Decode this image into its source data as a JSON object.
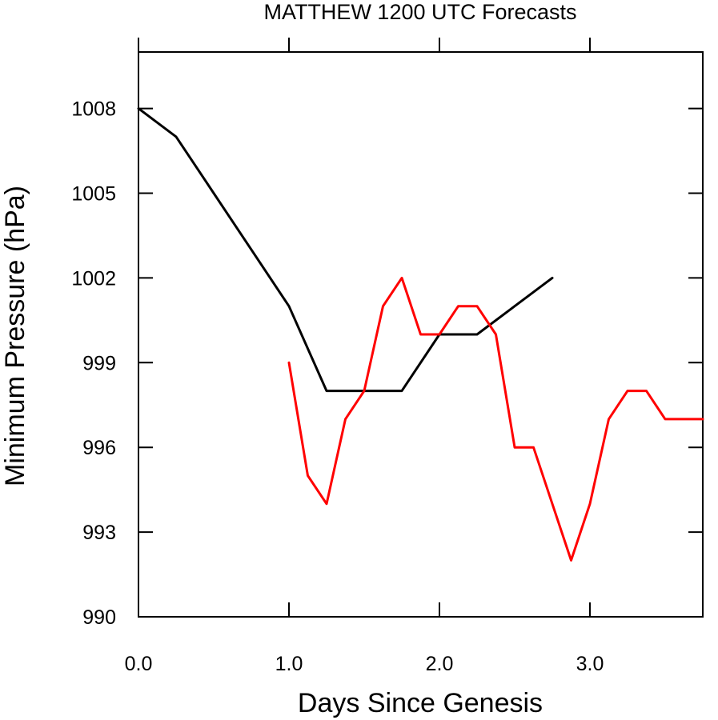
{
  "chart_data": {
    "type": "line",
    "title": "MATTHEW 1200 UTC Forecasts",
    "xlabel": "Days Since Genesis",
    "ylabel": "Minimum Pressure (hPa)",
    "xlim": [
      0,
      3.75
    ],
    "ylim": [
      990,
      1010
    ],
    "xticks": [
      0,
      1,
      2,
      3
    ],
    "xtick_labels": [
      "0.0",
      "1.0",
      "2.0",
      "3.0"
    ],
    "yticks": [
      990,
      993,
      996,
      999,
      1002,
      1005,
      1008
    ],
    "ytick_labels": [
      "990",
      "993",
      "996",
      "999",
      "1002",
      "1005",
      "1008"
    ],
    "grid": false,
    "series": [
      {
        "color": "#000000",
        "x": [
          0,
          0.25,
          0.5,
          0.75,
          1.0,
          1.25,
          1.5,
          1.75,
          2.0,
          2.25,
          2.5,
          2.75
        ],
        "y": [
          1008,
          1007,
          1005,
          1003,
          1001,
          998,
          998,
          998,
          1000,
          1000,
          1001,
          1002
        ]
      },
      {
        "color": "#ff0000",
        "x": [
          1.0,
          1.125,
          1.25,
          1.375,
          1.5,
          1.625,
          1.75,
          1.875,
          2.0,
          2.125,
          2.25,
          2.375,
          2.5,
          2.625,
          2.75,
          2.875,
          3.0,
          3.125,
          3.25,
          3.375,
          3.5,
          3.625,
          3.75
        ],
        "y": [
          999,
          995,
          994,
          997,
          998,
          1001,
          1002,
          1000,
          1000,
          1001,
          1001,
          1000,
          996,
          996,
          994,
          992,
          994,
          997,
          998,
          998,
          997,
          997,
          997
        ]
      }
    ]
  }
}
